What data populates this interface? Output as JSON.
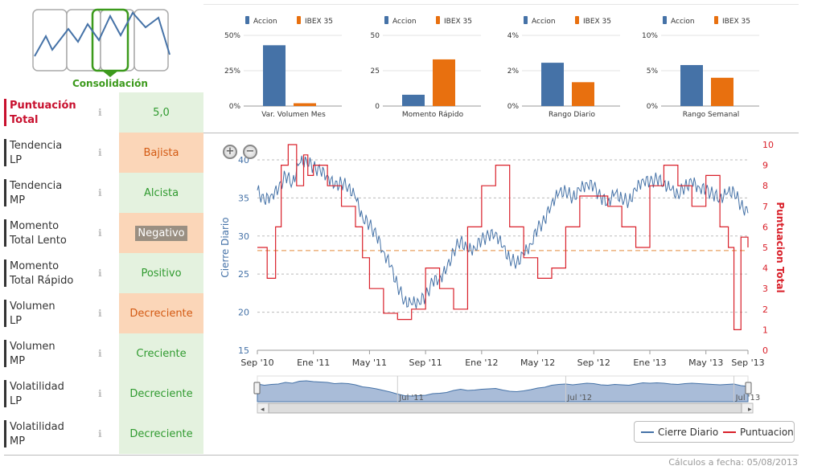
{
  "pattern": {
    "label": "Consolidación",
    "icon": "consolidation-pattern-icon"
  },
  "score_total": {
    "label_line1": "Puntuación",
    "label_line2": "Total",
    "value": "5,0"
  },
  "indicators": [
    {
      "line1": "Tendencia",
      "line2": "LP",
      "value": "Bajista",
      "state": "orange"
    },
    {
      "line1": "Tendencia",
      "line2": "MP",
      "value": "Alcista",
      "state": "green"
    },
    {
      "line1": "Momento",
      "line2": "Total Lento",
      "value": "Negativo",
      "state": "gray"
    },
    {
      "line1": "Momento",
      "line2": "Total Rápido",
      "value": "Positivo",
      "state": "green"
    },
    {
      "line1": "Volumen",
      "line2": "LP",
      "value": "Decreciente",
      "state": "orange"
    },
    {
      "line1": "Volumen",
      "line2": "MP",
      "value": "Creciente",
      "state": "green"
    },
    {
      "line1": "Volatilidad",
      "line2": "LP",
      "value": "Decreciente",
      "state": "green"
    },
    {
      "line1": "Volatilidad",
      "line2": "MP",
      "value": "Decreciente",
      "state": "green"
    }
  ],
  "info_icon": "ℹ",
  "colors": {
    "accion": "#4572a7",
    "ibex": "#e8700f",
    "score": "#d9202a",
    "price": "#4572a7"
  },
  "chart_data": [
    {
      "type": "bar",
      "title": "Var. Volumen Mes",
      "categories": [
        "Var. Volumen Mes"
      ],
      "series": [
        {
          "name": "Accion",
          "values": [
            43
          ]
        },
        {
          "name": "IBEX 35",
          "values": [
            2
          ]
        }
      ],
      "yticks": [
        "50%",
        "25%",
        "0%"
      ],
      "ylim": [
        0,
        50
      ]
    },
    {
      "type": "bar",
      "title": "Momento Rápido",
      "categories": [
        "Momento Rápido"
      ],
      "series": [
        {
          "name": "Accion",
          "values": [
            8
          ]
        },
        {
          "name": "IBEX 35",
          "values": [
            33
          ]
        }
      ],
      "yticks": [
        "50",
        "25",
        "0"
      ],
      "ylim": [
        0,
        50
      ]
    },
    {
      "type": "bar",
      "title": "Rango Diario",
      "categories": [
        "Rango Diario"
      ],
      "series": [
        {
          "name": "Accion",
          "values": [
            2.45
          ]
        },
        {
          "name": "IBEX 35",
          "values": [
            1.35
          ]
        }
      ],
      "yticks": [
        "4%",
        "2%",
        "0%"
      ],
      "ylim": [
        0,
        4
      ]
    },
    {
      "type": "bar",
      "title": "Rango Semanal",
      "categories": [
        "Rango Semanal"
      ],
      "series": [
        {
          "name": "Accion",
          "values": [
            5.8
          ]
        },
        {
          "name": "IBEX 35",
          "values": [
            4.0
          ]
        }
      ],
      "yticks": [
        "10%",
        "5%",
        "0%"
      ],
      "ylim": [
        0,
        10
      ]
    },
    {
      "type": "line",
      "title": "",
      "xlabel": "",
      "ylabel": "Cierre Diario",
      "ylabel_right": "Puntuacion Total",
      "ylim": [
        15,
        42
      ],
      "ylim_right": [
        0,
        10
      ],
      "yticks": [
        15,
        20,
        25,
        30,
        35,
        40
      ],
      "yticks_right": [
        0,
        1,
        2,
        3,
        4,
        5,
        6,
        7,
        8,
        9,
        10
      ],
      "xticks": [
        "Sep '10",
        "Ene '11",
        "May '11",
        "Sep '11",
        "Ene '12",
        "May '12",
        "Sep '12",
        "Ene '13",
        "May '13",
        "Sep '13"
      ],
      "x_months": [
        0,
        4,
        8,
        12,
        16,
        20,
        24,
        28,
        32,
        35
      ],
      "dashed_level_right": 4.85,
      "series": [
        {
          "name": "Cierre Diario",
          "x": [
            0,
            0.5,
            1,
            1.5,
            2,
            2.5,
            3,
            3.5,
            4,
            4.5,
            5,
            5.5,
            6,
            6.5,
            7,
            7.5,
            8,
            8.5,
            9,
            9.5,
            10,
            10.5,
            11,
            11.5,
            12,
            12.5,
            13,
            13.5,
            14,
            14.5,
            15,
            15.5,
            16,
            16.5,
            17,
            17.5,
            18,
            18.5,
            19,
            19.5,
            20,
            20.5,
            21,
            21.5,
            22,
            22.5,
            23,
            23.5,
            24,
            24.5,
            25,
            25.5,
            26,
            26.5,
            27,
            27.5,
            28,
            28.5,
            29,
            29.5,
            30,
            30.5,
            31,
            31.5,
            32,
            32.5,
            33,
            33.5,
            34,
            34.5,
            35
          ],
          "values": [
            36,
            34.5,
            35.5,
            36,
            38,
            37,
            39.5,
            40,
            39,
            38.5,
            38,
            36.5,
            37,
            36.5,
            35,
            32.5,
            31.5,
            30,
            28,
            26,
            23.5,
            21.5,
            21,
            21.5,
            22,
            24,
            24.5,
            25.5,
            28,
            29.5,
            28,
            28.5,
            29.5,
            30,
            30.5,
            28.5,
            27,
            26.5,
            27.5,
            29,
            31,
            32,
            34.5,
            35.5,
            36,
            35,
            36,
            37,
            36.5,
            35,
            34.5,
            35.5,
            35,
            34.5,
            36,
            37.5,
            37,
            37.5,
            37,
            36,
            35.5,
            36.5,
            37,
            36.5,
            36,
            35.5,
            35,
            35.5,
            36,
            34,
            33
          ]
        },
        {
          "name": "Puntuacion",
          "type": "step",
          "x": [
            0,
            0.7,
            1.3,
            1.7,
            2.2,
            2.8,
            3.3,
            3.6,
            4,
            5,
            6,
            7,
            7.5,
            8,
            9,
            10,
            11,
            12,
            13,
            14,
            15,
            16,
            17,
            18,
            19,
            20,
            21,
            22,
            23,
            24,
            25,
            26,
            27,
            28,
            29,
            30,
            31,
            32,
            33,
            33.6,
            34,
            34.5,
            35
          ],
          "values": [
            5,
            3.5,
            6,
            9,
            10,
            8,
            9.5,
            8.5,
            9,
            8,
            7,
            6,
            4.5,
            3,
            1.8,
            1.5,
            2,
            4,
            3,
            2,
            6,
            8,
            9,
            6,
            4.5,
            3.5,
            4,
            6,
            7.5,
            7.5,
            7,
            6,
            5,
            8,
            9,
            8,
            7,
            8.5,
            6,
            5,
            1,
            5.5,
            5
          ]
        }
      ],
      "navigator": {
        "labels": [
          "Jul '11",
          "Jul '12",
          "Jul '13"
        ]
      }
    }
  ],
  "legend": {
    "items": [
      "Cierre Diario",
      "Puntuacion"
    ]
  },
  "zoom": {
    "in": "+",
    "out": "−"
  },
  "footer": "Cálculos a fecha: 05/08/2013"
}
